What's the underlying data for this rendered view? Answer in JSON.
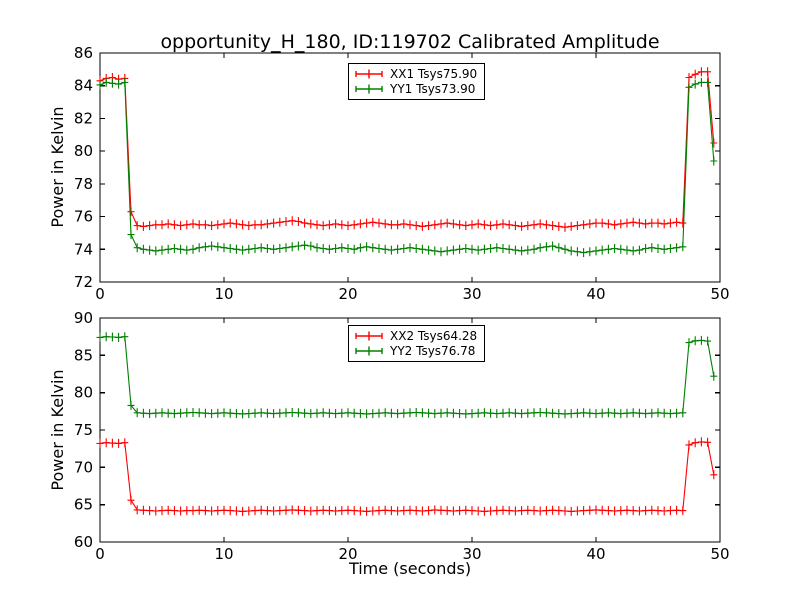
{
  "figure": {
    "title": "opportunity_H_180, ID:119702 Calibrated Amplitude",
    "background_color": "#ffffff",
    "axes_color": "#000000"
  },
  "chart_data": {
    "type": "line",
    "title": "opportunity_H_180, ID:119702 Calibrated Amplitude",
    "marker": "plus",
    "grid": false,
    "legend_position": "upper center",
    "plots": [
      {
        "name": "top",
        "ylabel": "Power in Kelvin",
        "xlabel": "",
        "xlim": [
          0,
          50
        ],
        "ylim": [
          72,
          86
        ],
        "xticks": [
          0,
          10,
          20,
          30,
          40,
          50
        ],
        "yticks": [
          72,
          74,
          76,
          78,
          80,
          82,
          84,
          86
        ],
        "x": [
          0,
          0.5,
          1,
          1.5,
          2,
          2.5,
          3,
          3.5,
          4,
          4.5,
          5,
          5.5,
          6,
          6.5,
          7,
          7.5,
          8,
          8.5,
          9,
          9.5,
          10,
          10.5,
          11,
          11.5,
          12,
          12.5,
          13,
          13.5,
          14,
          14.5,
          15,
          15.5,
          16,
          16.5,
          17,
          17.5,
          18,
          18.5,
          19,
          19.5,
          20,
          20.5,
          21,
          21.5,
          22,
          22.5,
          23,
          23.5,
          24,
          24.5,
          25,
          25.5,
          26,
          26.5,
          27,
          27.5,
          28,
          28.5,
          29,
          29.5,
          30,
          30.5,
          31,
          31.5,
          32,
          32.5,
          33,
          33.5,
          34,
          34.5,
          35,
          35.5,
          36,
          36.5,
          37,
          37.5,
          38,
          38.5,
          39,
          39.5,
          40,
          40.5,
          41,
          41.5,
          42,
          42.5,
          43,
          43.5,
          44,
          44.5,
          45,
          45.5,
          46,
          46.5,
          47,
          47.5,
          48,
          48.5,
          49,
          49.5
        ],
        "series": [
          {
            "label": "XX1 Tsys75.90",
            "color": "#ff0000",
            "y": [
              84.3,
              84.45,
              84.5,
              84.4,
              84.45,
              76.3,
              75.45,
              75.4,
              75.45,
              75.5,
              75.5,
              75.55,
              75.5,
              75.45,
              75.5,
              75.55,
              75.5,
              75.5,
              75.45,
              75.5,
              75.55,
              75.6,
              75.55,
              75.5,
              75.45,
              75.5,
              75.5,
              75.55,
              75.6,
              75.65,
              75.7,
              75.75,
              75.7,
              75.6,
              75.55,
              75.5,
              75.45,
              75.5,
              75.55,
              75.5,
              75.45,
              75.5,
              75.55,
              75.6,
              75.65,
              75.6,
              75.55,
              75.5,
              75.5,
              75.55,
              75.5,
              75.45,
              75.4,
              75.45,
              75.5,
              75.55,
              75.6,
              75.55,
              75.5,
              75.45,
              75.5,
              75.55,
              75.5,
              75.45,
              75.5,
              75.55,
              75.5,
              75.45,
              75.4,
              75.45,
              75.5,
              75.55,
              75.5,
              75.45,
              75.4,
              75.35,
              75.4,
              75.45,
              75.5,
              75.55,
              75.6,
              75.6,
              75.55,
              75.5,
              75.55,
              75.6,
              75.65,
              75.6,
              75.55,
              75.6,
              75.6,
              75.55,
              75.6,
              75.65,
              75.6,
              84.5,
              84.7,
              84.85,
              84.85,
              80.5
            ]
          },
          {
            "label": "YY1 Tsys73.90",
            "color": "#008000",
            "y": [
              84.05,
              84.2,
              84.15,
              84.1,
              84.2,
              74.9,
              74.1,
              74.0,
              73.95,
              73.9,
              73.95,
              74.0,
              74.05,
              74.0,
              73.95,
              74.0,
              74.1,
              74.15,
              74.2,
              74.15,
              74.1,
              74.05,
              74.0,
              73.95,
              74.0,
              74.05,
              74.1,
              74.05,
              74.0,
              74.05,
              74.1,
              74.15,
              74.2,
              74.25,
              74.2,
              74.1,
              74.05,
              74.0,
              74.05,
              74.1,
              74.05,
              74.0,
              74.1,
              74.15,
              74.1,
              74.05,
              74.0,
              73.95,
              74.0,
              74.05,
              74.1,
              74.05,
              74.0,
              73.95,
              73.9,
              73.85,
              73.9,
              73.95,
              74.0,
              74.05,
              74.0,
              73.95,
              74.0,
              74.05,
              74.1,
              74.05,
              74.0,
              73.95,
              73.9,
              73.95,
              74.0,
              74.1,
              74.15,
              74.2,
              74.1,
              74.0,
              73.9,
              73.85,
              73.8,
              73.85,
              73.9,
              73.95,
              74.0,
              74.05,
              74.0,
              73.95,
              73.9,
              73.95,
              74.05,
              74.1,
              74.05,
              74.0,
              74.05,
              74.1,
              74.15,
              83.9,
              84.1,
              84.2,
              84.2,
              79.4
            ]
          }
        ]
      },
      {
        "name": "bottom",
        "ylabel": "Power in Kelvin",
        "xlabel": "Time (seconds)",
        "xlim": [
          0,
          50
        ],
        "ylim": [
          60,
          90
        ],
        "xticks": [
          0,
          10,
          20,
          30,
          40,
          50
        ],
        "yticks": [
          60,
          65,
          70,
          75,
          80,
          85,
          90
        ],
        "x": [
          0,
          0.5,
          1,
          1.5,
          2,
          2.5,
          3,
          3.5,
          4,
          4.5,
          5,
          5.5,
          6,
          6.5,
          7,
          7.5,
          8,
          8.5,
          9,
          9.5,
          10,
          10.5,
          11,
          11.5,
          12,
          12.5,
          13,
          13.5,
          14,
          14.5,
          15,
          15.5,
          16,
          16.5,
          17,
          17.5,
          18,
          18.5,
          19,
          19.5,
          20,
          20.5,
          21,
          21.5,
          22,
          22.5,
          23,
          23.5,
          24,
          24.5,
          25,
          25.5,
          26,
          26.5,
          27,
          27.5,
          28,
          28.5,
          29,
          29.5,
          30,
          30.5,
          31,
          31.5,
          32,
          32.5,
          33,
          33.5,
          34,
          34.5,
          35,
          35.5,
          36,
          36.5,
          37,
          37.5,
          38,
          38.5,
          39,
          39.5,
          40,
          40.5,
          41,
          41.5,
          42,
          42.5,
          43,
          43.5,
          44,
          44.5,
          45,
          45.5,
          46,
          46.5,
          47,
          47.5,
          48,
          48.5,
          49,
          49.5
        ],
        "series": [
          {
            "label": "XX2 Tsys64.28",
            "color": "#ff0000",
            "y": [
              73.2,
              73.3,
              73.25,
              73.2,
              73.3,
              65.6,
              64.3,
              64.25,
              64.2,
              64.15,
              64.2,
              64.25,
              64.2,
              64.15,
              64.2,
              64.2,
              64.25,
              64.2,
              64.15,
              64.2,
              64.25,
              64.2,
              64.15,
              64.1,
              64.15,
              64.2,
              64.25,
              64.2,
              64.15,
              64.2,
              64.25,
              64.3,
              64.25,
              64.2,
              64.15,
              64.2,
              64.25,
              64.2,
              64.15,
              64.2,
              64.25,
              64.2,
              64.15,
              64.1,
              64.15,
              64.2,
              64.25,
              64.2,
              64.15,
              64.2,
              64.25,
              64.2,
              64.15,
              64.2,
              64.3,
              64.25,
              64.2,
              64.15,
              64.2,
              64.25,
              64.2,
              64.15,
              64.1,
              64.15,
              64.2,
              64.25,
              64.2,
              64.15,
              64.2,
              64.25,
              64.2,
              64.15,
              64.2,
              64.25,
              64.2,
              64.15,
              64.1,
              64.15,
              64.2,
              64.25,
              64.3,
              64.25,
              64.2,
              64.15,
              64.2,
              64.25,
              64.2,
              64.15,
              64.2,
              64.25,
              64.2,
              64.15,
              64.2,
              64.25,
              64.2,
              73.0,
              73.3,
              73.4,
              73.35,
              69.0
            ]
          },
          {
            "label": "YY2 Tsys76.78",
            "color": "#008000",
            "y": [
              87.4,
              87.5,
              87.45,
              87.4,
              87.5,
              78.3,
              77.3,
              77.25,
              77.2,
              77.25,
              77.3,
              77.25,
              77.2,
              77.25,
              77.3,
              77.35,
              77.3,
              77.25,
              77.2,
              77.25,
              77.3,
              77.25,
              77.2,
              77.15,
              77.2,
              77.25,
              77.3,
              77.25,
              77.2,
              77.25,
              77.3,
              77.35,
              77.3,
              77.25,
              77.2,
              77.25,
              77.3,
              77.25,
              77.2,
              77.25,
              77.3,
              77.25,
              77.2,
              77.15,
              77.2,
              77.25,
              77.3,
              77.25,
              77.2,
              77.25,
              77.3,
              77.35,
              77.3,
              77.25,
              77.2,
              77.25,
              77.3,
              77.25,
              77.2,
              77.15,
              77.2,
              77.25,
              77.3,
              77.25,
              77.2,
              77.25,
              77.3,
              77.25,
              77.2,
              77.25,
              77.3,
              77.35,
              77.3,
              77.25,
              77.2,
              77.15,
              77.2,
              77.25,
              77.3,
              77.25,
              77.2,
              77.25,
              77.3,
              77.25,
              77.2,
              77.25,
              77.3,
              77.25,
              77.2,
              77.25,
              77.3,
              77.25,
              77.2,
              77.25,
              77.3,
              86.7,
              86.95,
              87.0,
              86.9,
              82.2
            ]
          }
        ]
      }
    ]
  }
}
